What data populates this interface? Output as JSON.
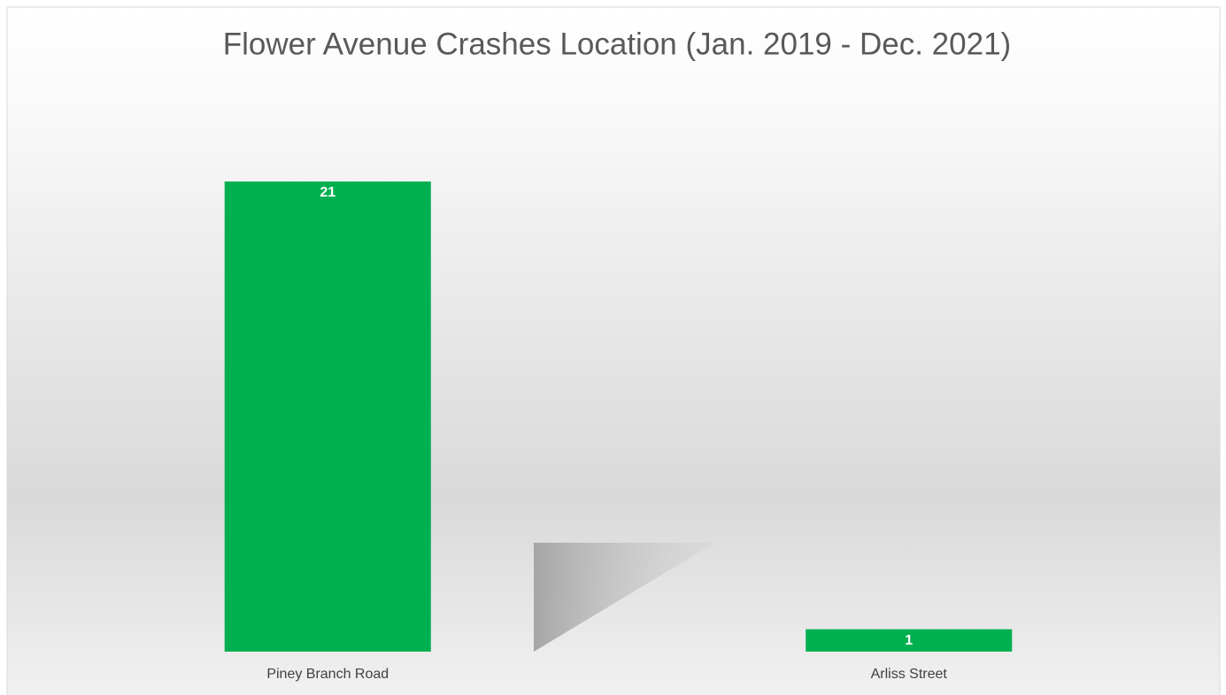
{
  "chart_data": {
    "type": "bar",
    "title": "Flower Avenue Crashes Location (Jan. 2019 - Dec. 2021)",
    "categories": [
      "Piney Branch Road",
      "Arliss Street"
    ],
    "values": [
      21,
      1
    ],
    "color": "#00b050"
  }
}
